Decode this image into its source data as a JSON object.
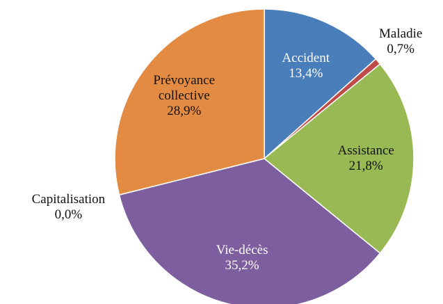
{
  "chart_data": {
    "type": "pie",
    "categories": [
      "Accident",
      "Maladie",
      "Assistance",
      "Vie-décès",
      "Capitalisation",
      "Prévoyance collective"
    ],
    "values": [
      13.4,
      0.7,
      21.8,
      35.2,
      0.0,
      28.9
    ],
    "value_labels": [
      "13,4%",
      "0,7%",
      "21,8%",
      "35,2%",
      "0,0%",
      "28,9%"
    ],
    "colors": [
      "#4a7ebb",
      "#be4b48",
      "#98b954",
      "#7d5fa0",
      "#46aac5",
      "#e38b42"
    ]
  }
}
